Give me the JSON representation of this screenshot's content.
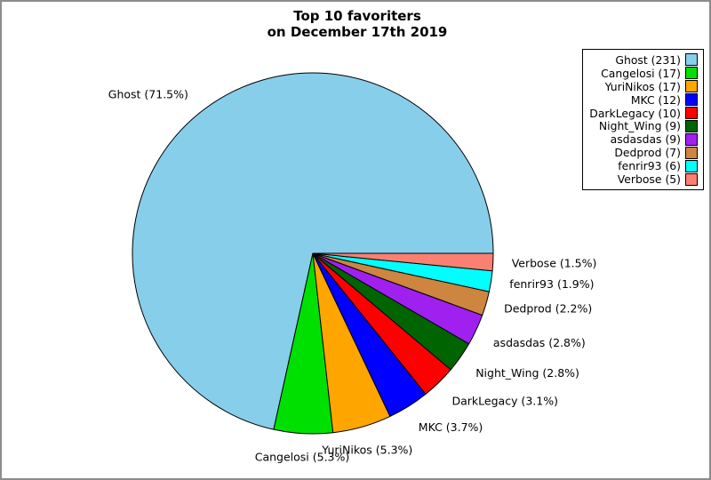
{
  "figure": {
    "title_line1": "Top 10 favoriters",
    "title_line2": "on December 17th 2019"
  },
  "chart_data": {
    "type": "pie",
    "title": "Top 10 favoriters on December 17th 2019",
    "legend_position": "upper right",
    "start_angle_deg": 0,
    "direction": "counterclockwise",
    "slices": [
      {
        "name": "Ghost",
        "value": 231,
        "pct": 71.5,
        "label": "Ghost (71.5%)",
        "legend_label": "Ghost (231)",
        "color": "#87CEEB"
      },
      {
        "name": "Cangelosi",
        "value": 17,
        "pct": 5.3,
        "label": "Cangelosi (5.3%)",
        "legend_label": "Cangelosi (17)",
        "color": "#00E000"
      },
      {
        "name": "YuriNikos",
        "value": 17,
        "pct": 5.3,
        "label": "YuriNikos (5.3%)",
        "legend_label": "YuriNikos (17)",
        "color": "#FFA500"
      },
      {
        "name": "MKC",
        "value": 12,
        "pct": 3.7,
        "label": "MKC (3.7%)",
        "legend_label": "MKC (12)",
        "color": "#0000FF"
      },
      {
        "name": "DarkLegacy",
        "value": 10,
        "pct": 3.1,
        "label": "DarkLegacy (3.1%)",
        "legend_label": "DarkLegacy (10)",
        "color": "#FF0000"
      },
      {
        "name": "Night_Wing",
        "value": 9,
        "pct": 2.8,
        "label": "Night_Wing (2.8%)",
        "legend_label": "Night_Wing (9)",
        "color": "#006400"
      },
      {
        "name": "asdasdas",
        "value": 9,
        "pct": 2.8,
        "label": "asdasdas (2.8%)",
        "legend_label": "asdasdas (9)",
        "color": "#A020F0"
      },
      {
        "name": "Dedprod",
        "value": 7,
        "pct": 2.2,
        "label": "Dedprod (2.2%)",
        "legend_label": "Dedprod (7)",
        "color": "#CD853F"
      },
      {
        "name": "fenrir93",
        "value": 6,
        "pct": 1.9,
        "label": "fenrir93 (1.9%)",
        "legend_label": "fenrir93 (6)",
        "color": "#00FFFF"
      },
      {
        "name": "Verbose",
        "value": 5,
        "pct": 1.5,
        "label": "Verbose (1.5%)",
        "legend_label": "Verbose (5)",
        "color": "#FA8072"
      }
    ]
  }
}
